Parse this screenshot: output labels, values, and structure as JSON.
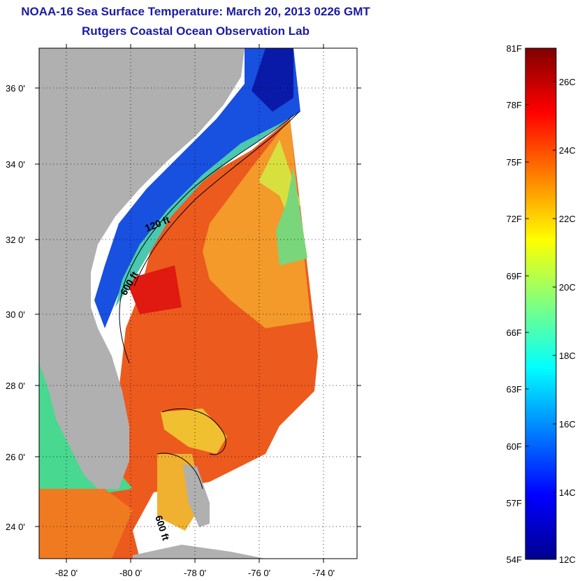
{
  "header": {
    "title": "NOAA-16 Sea Surface Temperature:  March 20, 2013 0226 GMT",
    "subtitle": "Rutgers Coastal Ocean Observation Lab"
  },
  "map": {
    "lat_ticks": [
      "36 0'",
      "34 0'",
      "32 0'",
      "30 0'",
      "28 0'",
      "26 0'",
      "24 0'"
    ],
    "lon_ticks": [
      "-82 0'",
      "-80 0'",
      "-78 0'",
      "-76 0'",
      "-74 0'"
    ],
    "isobath_labels": [
      "120 ft",
      "600 ft",
      "600 ft"
    ],
    "colors": {
      "land": "#b0b0b0",
      "no_data": "#ffffff",
      "cold": "#0a1cc8",
      "cool": "#1e8cf0",
      "mild": "#56e6a8",
      "warm": "#f0a028",
      "hot": "#e8301a"
    }
  },
  "colorbar": {
    "fahrenheit_labels": [
      "81F",
      "78F",
      "75F",
      "72F",
      "69F",
      "66F",
      "63F",
      "60F",
      "57F",
      "54F"
    ],
    "celsius_labels": [
      "26C",
      "24C",
      "22C",
      "20C",
      "18C",
      "16C",
      "14C",
      "12C"
    ],
    "colors": [
      "#00008f",
      "#0000ff",
      "#0080ff",
      "#00ffff",
      "#80ff80",
      "#ffff00",
      "#ff8000",
      "#ff0000",
      "#800000"
    ]
  }
}
